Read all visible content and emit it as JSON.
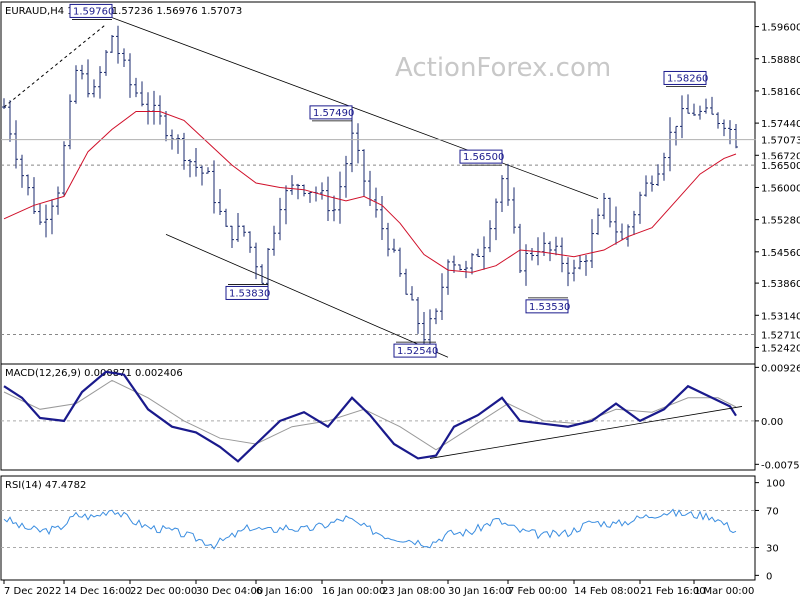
{
  "chart_data": {
    "type": "candlestick",
    "symbol_header": "EURAUD,H4  1.57150 1.57236 1.56976 1.57073",
    "watermark": "ActionForex.com",
    "price_axis": {
      "ticks": [
        "1.59600",
        "1.58880",
        "1.58160",
        "1.57440",
        "1.56720",
        "1.56000",
        "1.55280",
        "1.54560",
        "1.53860",
        "1.53140",
        "1.52420"
      ],
      "tick_values": [
        1.596,
        1.5888,
        1.5816,
        1.5744,
        1.5672,
        1.56,
        1.5528,
        1.5456,
        1.5386,
        1.5314,
        1.5242
      ],
      "ylim": [
        1.5205,
        1.6015
      ],
      "current_price": "1.57073",
      "marked_levels": [
        {
          "label": "1.56500",
          "value": 1.565
        },
        {
          "label": "1.52710",
          "value": 1.5271
        }
      ]
    },
    "price_labels": [
      {
        "label": "1.59760",
        "bar": 18,
        "value": 1.5976
      },
      {
        "label": "1.57490",
        "bar": 58,
        "value": 1.5749
      },
      {
        "label": "1.53830",
        "bar": 44,
        "value": 1.5383
      },
      {
        "label": "1.52540",
        "bar": 72,
        "value": 1.5254
      },
      {
        "label": "1.56500",
        "bar": 83,
        "value": 1.565
      },
      {
        "label": "1.53530",
        "bar": 94,
        "value": 1.5353
      },
      {
        "label": "1.58260",
        "bar": 117,
        "value": 1.5826
      }
    ],
    "time_axis": {
      "labels": [
        "7 Dec 2022",
        "14 Dec 16:00",
        "22 Dec 00:00",
        "30 Dec 04:00",
        "6 Jan 16:00",
        "16 Jan 00:00",
        "23 Jan 08:00",
        "30 Jan 16:00",
        "7 Feb 00:00",
        "14 Feb 08:00",
        "21 Feb 16:00",
        "1 Mar 00:00"
      ],
      "label_bars": [
        0,
        10,
        21,
        32,
        42,
        53,
        63,
        74,
        84,
        95,
        106,
        115
      ]
    },
    "close_path": [
      {
        "bar": 0,
        "value": 1.578
      },
      {
        "bar": 3,
        "value": 1.563
      },
      {
        "bar": 6,
        "value": 1.552
      },
      {
        "bar": 9,
        "value": 1.56
      },
      {
        "bar": 12,
        "value": 1.586
      },
      {
        "bar": 15,
        "value": 1.581
      },
      {
        "bar": 18,
        "value": 1.594
      },
      {
        "bar": 21,
        "value": 1.583
      },
      {
        "bar": 24,
        "value": 1.578
      },
      {
        "bar": 28,
        "value": 1.572
      },
      {
        "bar": 31,
        "value": 1.566
      },
      {
        "bar": 34,
        "value": 1.562
      },
      {
        "bar": 37,
        "value": 1.55
      },
      {
        "bar": 40,
        "value": 1.55
      },
      {
        "bar": 43,
        "value": 1.54
      },
      {
        "bar": 46,
        "value": 1.557
      },
      {
        "bar": 49,
        "value": 1.561
      },
      {
        "bar": 52,
        "value": 1.559
      },
      {
        "bar": 55,
        "value": 1.555
      },
      {
        "bar": 58,
        "value": 1.571
      },
      {
        "bar": 61,
        "value": 1.557
      },
      {
        "bar": 64,
        "value": 1.548
      },
      {
        "bar": 67,
        "value": 1.536
      },
      {
        "bar": 70,
        "value": 1.527
      },
      {
        "bar": 72,
        "value": 1.531
      },
      {
        "bar": 74,
        "value": 1.545
      },
      {
        "bar": 77,
        "value": 1.541
      },
      {
        "bar": 80,
        "value": 1.548
      },
      {
        "bar": 83,
        "value": 1.562
      },
      {
        "bar": 86,
        "value": 1.543
      },
      {
        "bar": 89,
        "value": 1.547
      },
      {
        "bar": 92,
        "value": 1.545
      },
      {
        "bar": 95,
        "value": 1.541
      },
      {
        "bar": 97,
        "value": 1.545
      },
      {
        "bar": 100,
        "value": 1.556
      },
      {
        "bar": 103,
        "value": 1.548
      },
      {
        "bar": 106,
        "value": 1.558
      },
      {
        "bar": 109,
        "value": 1.565
      },
      {
        "bar": 112,
        "value": 1.575
      },
      {
        "bar": 115,
        "value": 1.577
      },
      {
        "bar": 117,
        "value": 1.576
      },
      {
        "bar": 120,
        "value": 1.575
      },
      {
        "bar": 122,
        "value": 1.5707
      }
    ],
    "ma_path": [
      {
        "bar": 0,
        "value": 1.553
      },
      {
        "bar": 5,
        "value": 1.556
      },
      {
        "bar": 10,
        "value": 1.558
      },
      {
        "bar": 14,
        "value": 1.568
      },
      {
        "bar": 18,
        "value": 1.573
      },
      {
        "bar": 22,
        "value": 1.577
      },
      {
        "bar": 26,
        "value": 1.577
      },
      {
        "bar": 30,
        "value": 1.575
      },
      {
        "bar": 34,
        "value": 1.57
      },
      {
        "bar": 38,
        "value": 1.565
      },
      {
        "bar": 42,
        "value": 1.561
      },
      {
        "bar": 46,
        "value": 1.56
      },
      {
        "bar": 50,
        "value": 1.5595
      },
      {
        "bar": 54,
        "value": 1.558
      },
      {
        "bar": 57,
        "value": 1.557
      },
      {
        "bar": 60,
        "value": 1.558
      },
      {
        "bar": 63,
        "value": 1.556
      },
      {
        "bar": 66,
        "value": 1.552
      },
      {
        "bar": 70,
        "value": 1.545
      },
      {
        "bar": 74,
        "value": 1.5415
      },
      {
        "bar": 78,
        "value": 1.541
      },
      {
        "bar": 82,
        "value": 1.5425
      },
      {
        "bar": 86,
        "value": 1.546
      },
      {
        "bar": 90,
        "value": 1.5455
      },
      {
        "bar": 95,
        "value": 1.5445
      },
      {
        "bar": 100,
        "value": 1.546
      },
      {
        "bar": 104,
        "value": 1.549
      },
      {
        "bar": 108,
        "value": 1.551
      },
      {
        "bar": 112,
        "value": 1.557
      },
      {
        "bar": 116,
        "value": 1.563
      },
      {
        "bar": 120,
        "value": 1.5665
      },
      {
        "bar": 122,
        "value": 1.5675
      }
    ],
    "trendlines": [
      {
        "from": {
          "bar": 18,
          "value": 1.598
        },
        "to": {
          "bar": 99,
          "value": 1.5575
        }
      },
      {
        "from": {
          "bar": 27,
          "value": 1.5495
        },
        "to": {
          "bar": 74,
          "value": 1.522
        }
      }
    ],
    "bars_visible": 123,
    "macd": {
      "header": "MACD(12,26,9) 0.000871 0.002406",
      "ticks": [
        "0.009263",
        "0.00",
        "-0.007517"
      ],
      "tick_values": [
        0.009263,
        0.0,
        -0.007517
      ],
      "ylim": [
        -0.0085,
        0.0095
      ],
      "macd_path": [
        {
          "bar": 0,
          "value": 0.006
        },
        {
          "bar": 3,
          "value": 0.004
        },
        {
          "bar": 6,
          "value": 0.0005
        },
        {
          "bar": 10,
          "value": 0.0
        },
        {
          "bar": 13,
          "value": 0.005
        },
        {
          "bar": 17,
          "value": 0.0085
        },
        {
          "bar": 20,
          "value": 0.008
        },
        {
          "bar": 24,
          "value": 0.002
        },
        {
          "bar": 28,
          "value": -0.001
        },
        {
          "bar": 32,
          "value": -0.002
        },
        {
          "bar": 36,
          "value": -0.0045
        },
        {
          "bar": 39,
          "value": -0.007
        },
        {
          "bar": 42,
          "value": -0.004
        },
        {
          "bar": 46,
          "value": 0.0
        },
        {
          "bar": 50,
          "value": 0.0015
        },
        {
          "bar": 54,
          "value": -0.001
        },
        {
          "bar": 58,
          "value": 0.004
        },
        {
          "bar": 61,
          "value": 0.001
        },
        {
          "bar": 65,
          "value": -0.004
        },
        {
          "bar": 69,
          "value": -0.0065
        },
        {
          "bar": 72,
          "value": -0.006
        },
        {
          "bar": 75,
          "value": -0.001
        },
        {
          "bar": 79,
          "value": 0.001
        },
        {
          "bar": 83,
          "value": 0.004
        },
        {
          "bar": 86,
          "value": 0.0
        },
        {
          "bar": 90,
          "value": -0.0005
        },
        {
          "bar": 94,
          "value": -0.001
        },
        {
          "bar": 98,
          "value": 0.0
        },
        {
          "bar": 102,
          "value": 0.003
        },
        {
          "bar": 106,
          "value": 0.0
        },
        {
          "bar": 110,
          "value": 0.002
        },
        {
          "bar": 114,
          "value": 0.006
        },
        {
          "bar": 118,
          "value": 0.004
        },
        {
          "bar": 121,
          "value": 0.0025
        },
        {
          "bar": 122,
          "value": 0.0009
        }
      ],
      "signal_path": [
        {
          "bar": 0,
          "value": 0.005
        },
        {
          "bar": 6,
          "value": 0.002
        },
        {
          "bar": 12,
          "value": 0.003
        },
        {
          "bar": 18,
          "value": 0.007
        },
        {
          "bar": 24,
          "value": 0.004
        },
        {
          "bar": 30,
          "value": 0.0
        },
        {
          "bar": 36,
          "value": -0.003
        },
        {
          "bar": 42,
          "value": -0.004
        },
        {
          "bar": 48,
          "value": -0.001
        },
        {
          "bar": 54,
          "value": 0.0
        },
        {
          "bar": 60,
          "value": 0.002
        },
        {
          "bar": 66,
          "value": -0.001
        },
        {
          "bar": 72,
          "value": -0.005
        },
        {
          "bar": 78,
          "value": -0.001
        },
        {
          "bar": 84,
          "value": 0.003
        },
        {
          "bar": 90,
          "value": 0.0
        },
        {
          "bar": 96,
          "value": -0.0005
        },
        {
          "bar": 102,
          "value": 0.002
        },
        {
          "bar": 108,
          "value": 0.0015
        },
        {
          "bar": 114,
          "value": 0.004
        },
        {
          "bar": 119,
          "value": 0.004
        },
        {
          "bar": 122,
          "value": 0.0024
        }
      ],
      "trendline": {
        "from": {
          "bar": 71,
          "value": -0.0065
        },
        "to": {
          "bar": 123,
          "value": 0.0025
        }
      }
    },
    "rsi": {
      "header": "RSI(14) 47.4782",
      "ticks": [
        "100",
        "70",
        "30",
        "0"
      ],
      "tick_values": [
        100,
        70,
        30,
        0
      ],
      "ylim": [
        -5,
        105
      ],
      "levels": [
        70,
        30
      ],
      "rsi_path": [
        {
          "bar": 0,
          "value": 62
        },
        {
          "bar": 3,
          "value": 52
        },
        {
          "bar": 6,
          "value": 48
        },
        {
          "bar": 9,
          "value": 50
        },
        {
          "bar": 12,
          "value": 65
        },
        {
          "bar": 15,
          "value": 63
        },
        {
          "bar": 18,
          "value": 72
        },
        {
          "bar": 21,
          "value": 60
        },
        {
          "bar": 24,
          "value": 52
        },
        {
          "bar": 28,
          "value": 48
        },
        {
          "bar": 32,
          "value": 40
        },
        {
          "bar": 35,
          "value": 33
        },
        {
          "bar": 38,
          "value": 42
        },
        {
          "bar": 41,
          "value": 52
        },
        {
          "bar": 44,
          "value": 48
        },
        {
          "bar": 47,
          "value": 52
        },
        {
          "bar": 50,
          "value": 49
        },
        {
          "bar": 54,
          "value": 55
        },
        {
          "bar": 57,
          "value": 62
        },
        {
          "bar": 60,
          "value": 52
        },
        {
          "bar": 64,
          "value": 42
        },
        {
          "bar": 68,
          "value": 38
        },
        {
          "bar": 71,
          "value": 34
        },
        {
          "bar": 74,
          "value": 45
        },
        {
          "bar": 78,
          "value": 47
        },
        {
          "bar": 82,
          "value": 60
        },
        {
          "bar": 86,
          "value": 48
        },
        {
          "bar": 90,
          "value": 43
        },
        {
          "bar": 94,
          "value": 46
        },
        {
          "bar": 98,
          "value": 58
        },
        {
          "bar": 102,
          "value": 55
        },
        {
          "bar": 106,
          "value": 62
        },
        {
          "bar": 110,
          "value": 68
        },
        {
          "bar": 114,
          "value": 66
        },
        {
          "bar": 118,
          "value": 64
        },
        {
          "bar": 122,
          "value": 47.48
        }
      ]
    },
    "colors": {
      "bars": "#1a2a6c",
      "ma": "#d0102a",
      "macd": "#1a1a8c",
      "signal": "#9a9a9a",
      "rsi": "#3a8de0",
      "trendline": "#000000",
      "grid_level": "#888888",
      "label_border": "#1a1a8c"
    },
    "grid": false
  }
}
